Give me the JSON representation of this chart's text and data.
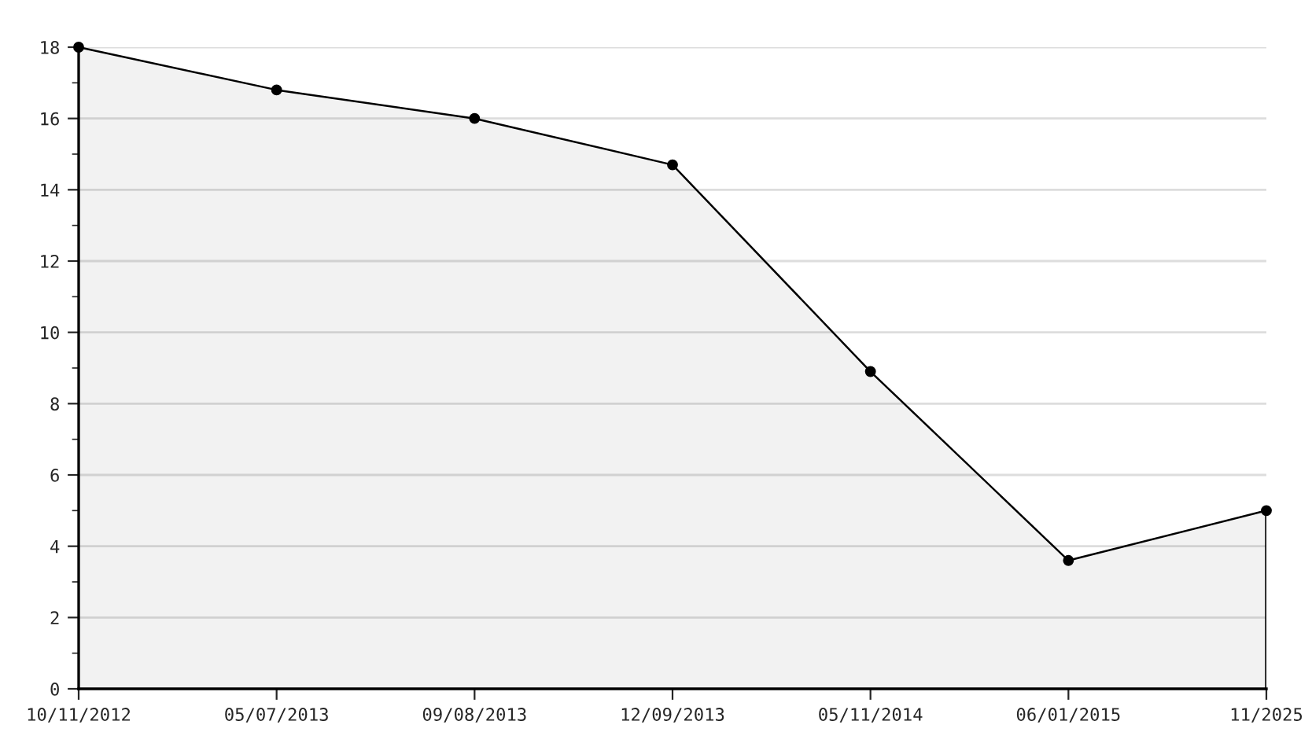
{
  "chart_data": {
    "type": "area",
    "categories": [
      "10/11/2012",
      "05/07/2013",
      "09/08/2013",
      "12/09/2013",
      "05/11/2014",
      "06/01/2015",
      "11/2025"
    ],
    "series": [
      {
        "color": "#000000",
        "values": [
          18,
          16.8,
          16.0,
          14.7,
          8.9,
          3.6,
          5.0
        ]
      }
    ],
    "ylim": [
      0,
      18
    ],
    "yticks": [
      0,
      {
        "value": 1,
        "label": null
      },
      2,
      {
        "value": 3,
        "label": null
      },
      4,
      {
        "value": 5,
        "label": null
      },
      6,
      {
        "value": 7,
        "label": null
      },
      8,
      {
        "value": 9,
        "label": null
      },
      10,
      {
        "value": 11,
        "label": null
      },
      12,
      {
        "value": 13,
        "label": null
      },
      14,
      {
        "value": 15,
        "label": null
      },
      16,
      {
        "value": 17,
        "label": null
      },
      18
    ],
    "grid": "y",
    "marker": "circle",
    "line_style": "solid"
  }
}
